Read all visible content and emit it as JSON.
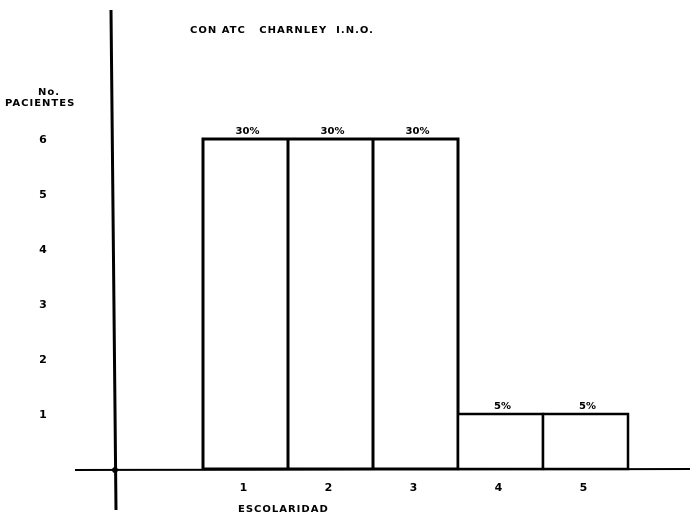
{
  "chart_data": {
    "type": "bar",
    "title": "CON ATC   CHARNLEY  I.N.O.",
    "xlabel": "ESCOLARIDAD",
    "ylabel": [
      "No.",
      "PACIENTES"
    ],
    "categories": [
      "1",
      "2",
      "3",
      "4",
      "5"
    ],
    "values": [
      6,
      6,
      6,
      1,
      1
    ],
    "data_labels": [
      "30%",
      "30%",
      "30%",
      "5%",
      "5%"
    ],
    "yticks": [
      "1",
      "2",
      "3",
      "4",
      "5",
      "6"
    ],
    "ytick_values": [
      1,
      2,
      3,
      4,
      5,
      6
    ],
    "ylim": [
      0,
      7.3
    ],
    "grid": false,
    "legend": "none",
    "colors": {
      "line": "#000000",
      "bar_fill": "#ffffff",
      "background": "#ffffff"
    }
  }
}
